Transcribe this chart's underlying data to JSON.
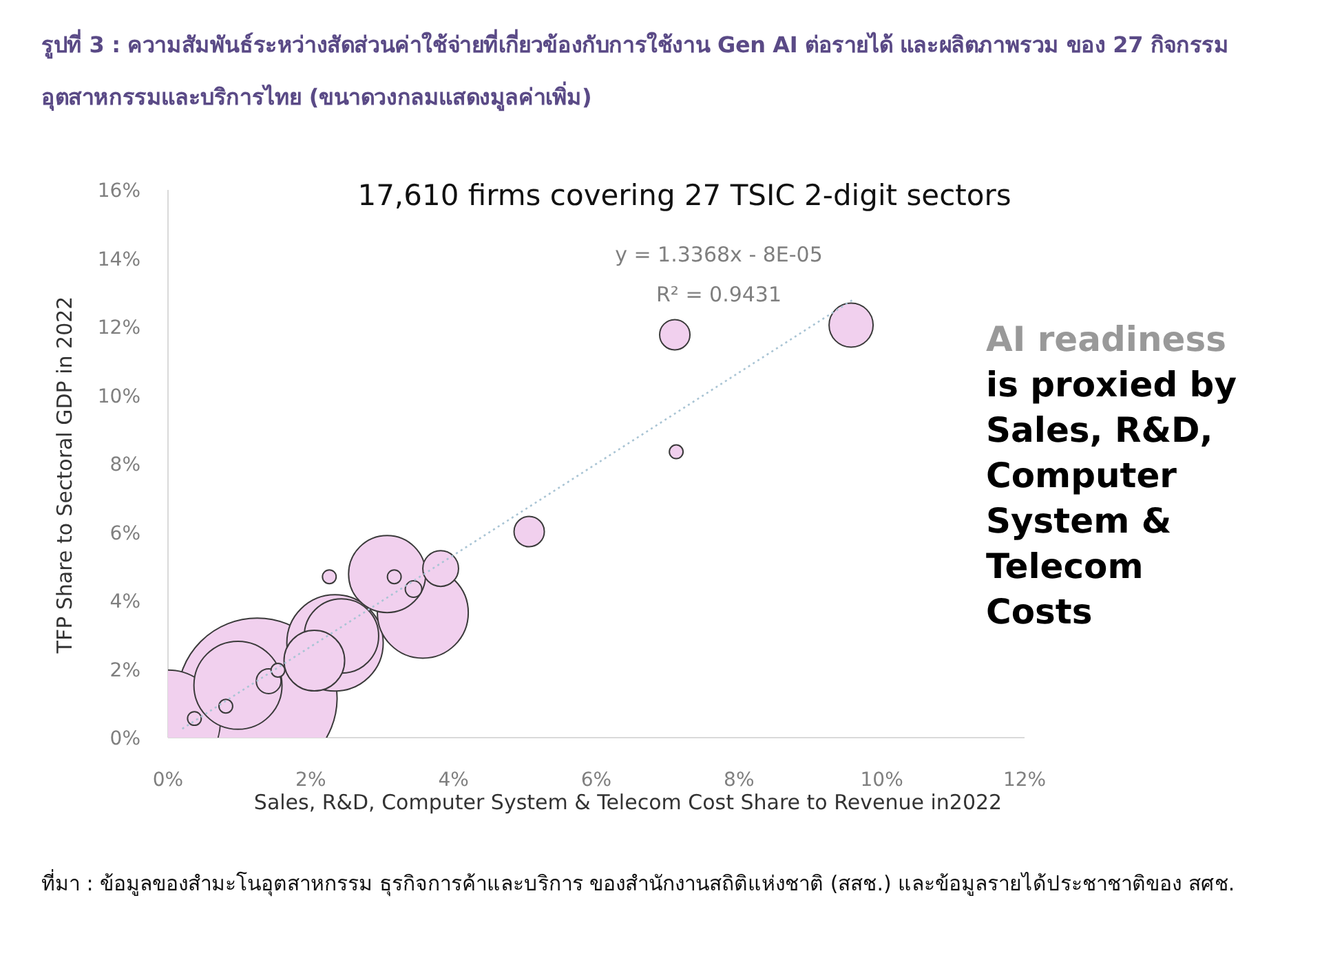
{
  "chart_data": {
    "type": "bubble",
    "title": "รูปที่ 3 : ความสัมพันธ์ระหว่างสัดส่วนค่าใช้จ่ายที่เกี่ยวข้องกับการใช้งาน Gen AI ต่อรายได้ และผลิตภาพรวม ของ 27 กิจกรรมอุตสาหกรรมและบริการไทย (ขนาดวงกลมแสดงมูลค่าเพิ่ม)",
    "subtitle": "17,610 firms covering 27 TSIC 2-digit sectors",
    "xlabel": "Sales, R&D, Computer System & Telecom Cost Share to Revenue in2022",
    "ylabel": "TFP Share to Sectoral GDP in 2022",
    "xlim": [
      0,
      12
    ],
    "ylim": [
      0,
      16
    ],
    "xticks": [
      {
        "value": 0,
        "label": "0%"
      },
      {
        "value": 2,
        "label": "2%"
      },
      {
        "value": 4,
        "label": "4%"
      },
      {
        "value": 6,
        "label": "6%"
      },
      {
        "value": 8,
        "label": "8%"
      },
      {
        "value": 10,
        "label": "10%"
      },
      {
        "value": 12,
        "label": "12%"
      }
    ],
    "yticks": [
      {
        "value": 0,
        "label": "0%"
      },
      {
        "value": 2,
        "label": "2%"
      },
      {
        "value": 4,
        "label": "4%"
      },
      {
        "value": 6,
        "label": "6%"
      },
      {
        "value": 8,
        "label": "8%"
      },
      {
        "value": 10,
        "label": "10%"
      },
      {
        "value": 12,
        "label": "12%"
      },
      {
        "value": 14,
        "label": "14%"
      },
      {
        "value": 16,
        "label": "16%"
      }
    ],
    "series": [
      {
        "color": "#f1d0ee",
        "x": [
          9.57,
          7.1,
          7.12,
          5.06,
          3.82,
          2.26,
          3.07,
          3.17,
          3.44,
          3.57,
          2.34,
          2.43,
          2.05,
          1.25,
          0.98,
          1.41,
          1.54,
          0.81,
          0.37,
          0.0
        ],
        "values": [
          12.05,
          11.77,
          8.35,
          6.02,
          4.94,
          4.7,
          4.78,
          4.7,
          4.34,
          3.65,
          2.77,
          2.97,
          2.25,
          1.16,
          1.53,
          1.65,
          1.97,
          0.92,
          0.56,
          0.45
        ],
        "sizes": [
          0.076,
          0.036,
          0.0074,
          0.036,
          0.05,
          0.0074,
          0.233,
          0.0074,
          0.0107,
          0.324,
          0.364,
          0.217,
          0.144,
          1,
          0.304,
          0.024,
          0.0074,
          0.0074,
          0.0074,
          0.429
        ]
      },
      {
        "type": "line",
        "line_style": "dotted",
        "color": "#a9c4d4",
        "x": [
          0.2,
          9.6
        ],
        "values": [
          0.26,
          12.8
        ]
      }
    ],
    "annotations": [
      "y = 1.3368x - 8E-05",
      "R² = 0.9431",
      "AI readiness",
      "is proxied by Sales, R&D, Computer System & Telecom Costs",
      "ที่มา : ข้อมูลของสำมะโนอุตสาหกรรม ธุรกิจการค้าและบริการ ของสำนักงานสถิติแห่งชาติ (สสช.) และข้อมูลรายได้ประชาชาติของ สศช."
    ]
  }
}
